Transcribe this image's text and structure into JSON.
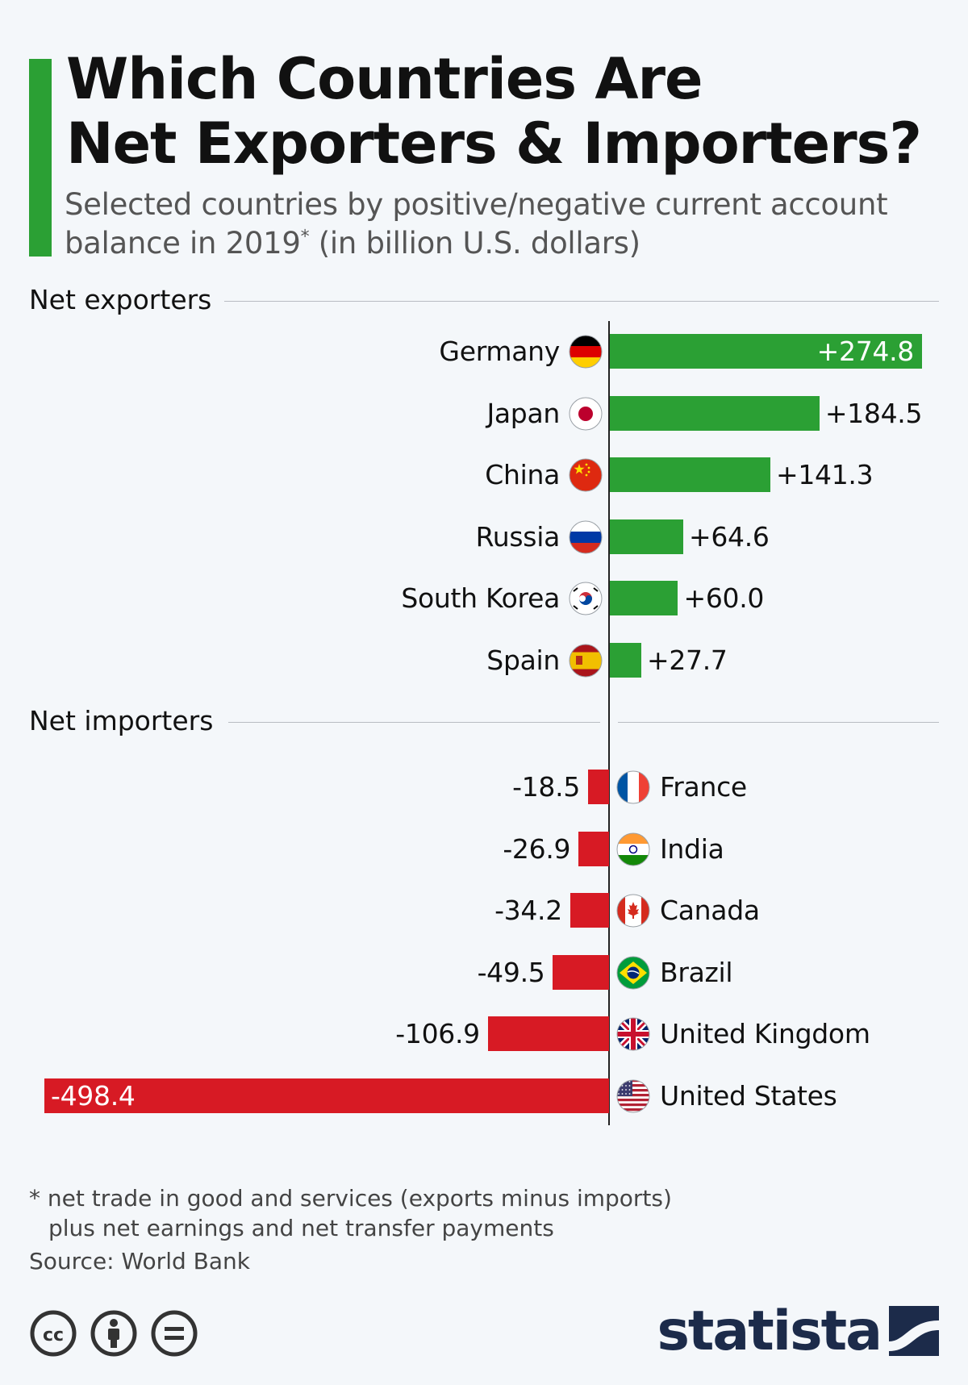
{
  "header": {
    "title_line1": "Which Countries Are",
    "title_line2": "Net Exporters & Importers?",
    "subtitle_line1": "Selected countries by positive/negative current account",
    "subtitle_line2_a": "balance in 2019",
    "subtitle_sup": "*",
    "subtitle_line2_b": " (in billion U.S. dollars)"
  },
  "chart_data": {
    "type": "bar",
    "orientation": "horizontal",
    "unit": "billion U.S. dollars",
    "groups": [
      {
        "label": "Net exporters",
        "color": "#2ba034",
        "categories": [
          "Germany",
          "Japan",
          "China",
          "Russia",
          "South Korea",
          "Spain"
        ],
        "values": [
          274.8,
          184.5,
          141.3,
          64.6,
          60.0,
          27.7
        ],
        "value_labels": [
          "+274.8",
          "+184.5",
          "+141.3",
          "+64.6",
          "+60.0",
          "+27.7"
        ],
        "flags": [
          "germany-flag-icon",
          "japan-flag-icon",
          "china-flag-icon",
          "russia-flag-icon",
          "south-korea-flag-icon",
          "spain-flag-icon"
        ]
      },
      {
        "label": "Net importers",
        "color": "#d71a24",
        "categories": [
          "France",
          "India",
          "Canada",
          "Brazil",
          "United Kingdom",
          "United States"
        ],
        "values": [
          -18.5,
          -26.9,
          -34.2,
          -49.5,
          -106.9,
          -498.4
        ],
        "value_labels": [
          "-18.5",
          "-26.9",
          "-34.2",
          "-49.5",
          "-106.9",
          "-498.4"
        ],
        "flags": [
          "france-flag-icon",
          "india-flag-icon",
          "canada-flag-icon",
          "brazil-flag-icon",
          "united-kingdom-flag-icon",
          "united-states-flag-icon"
        ]
      }
    ],
    "grid": false
  },
  "footer": {
    "footnote_line1": "* net trade in good and services (exports minus imports)",
    "footnote_line2": "plus net earnings and net transfer payments",
    "source": "Source: World Bank",
    "license_icons": [
      "cc-icon",
      "attribution-icon",
      "no-derivatives-icon"
    ],
    "logo_text": "statista"
  }
}
